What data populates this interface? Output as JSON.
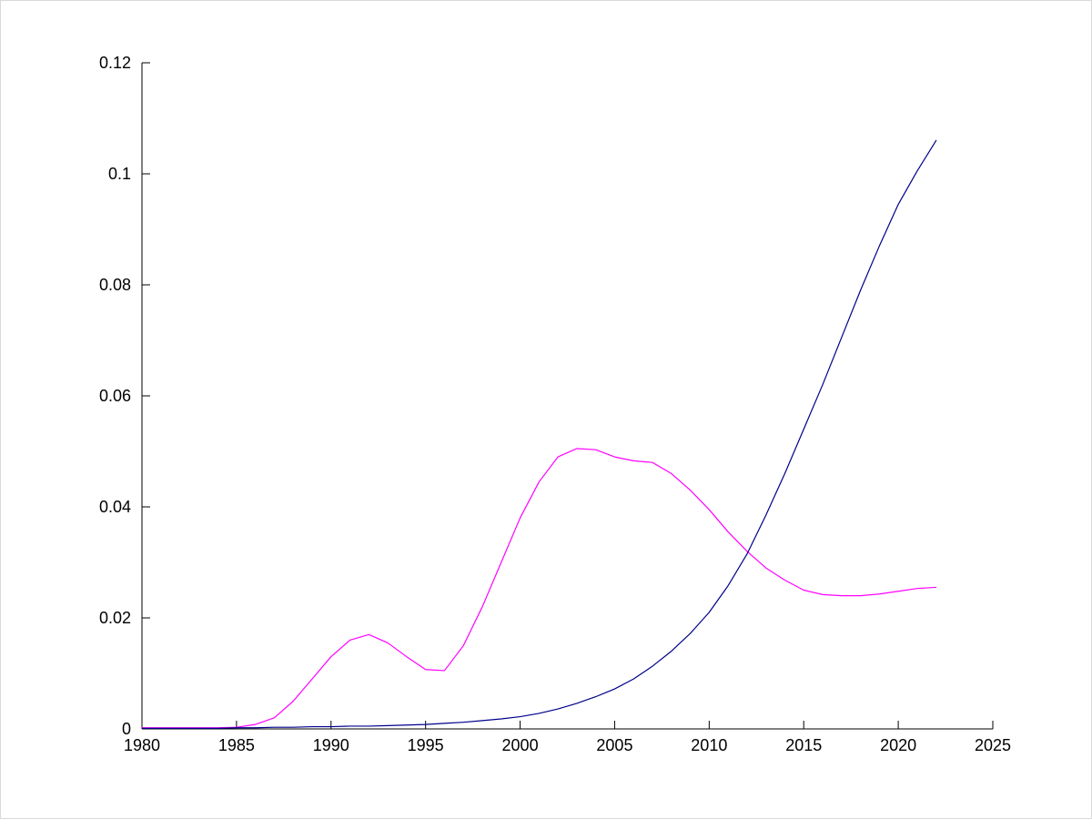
{
  "figure": {
    "background": "#ffffff",
    "axis_color": "#000000"
  },
  "chart_data": {
    "type": "line",
    "title": "",
    "xlabel": "",
    "ylabel": "",
    "xlim": [
      1980,
      2025
    ],
    "ylim": [
      0,
      0.12
    ],
    "xticks": [
      1980,
      1985,
      1990,
      1995,
      2000,
      2005,
      2010,
      2015,
      2020,
      2025
    ],
    "xtick_labels": [
      "1980",
      "1985",
      "1990",
      "1995",
      "2000",
      "2005",
      "2010",
      "2015",
      "2020",
      "2025"
    ],
    "yticks": [
      0,
      0.02,
      0.04,
      0.06,
      0.08,
      0.1,
      0.12
    ],
    "ytick_labels": [
      "0",
      "0.02",
      "0.04",
      "0.06",
      "0.08",
      "0.1",
      "0.12"
    ],
    "grid": false,
    "legend": null,
    "x": [
      1980,
      1981,
      1982,
      1983,
      1984,
      1985,
      1986,
      1987,
      1988,
      1989,
      1990,
      1991,
      1992,
      1993,
      1994,
      1995,
      1996,
      1997,
      1998,
      1999,
      2000,
      2001,
      2002,
      2003,
      2004,
      2005,
      2006,
      2007,
      2008,
      2009,
      2010,
      2011,
      2012,
      2013,
      2014,
      2015,
      2016,
      2017,
      2018,
      2019,
      2020,
      2021,
      2022
    ],
    "series": [
      {
        "name": "magenta-series",
        "color": "#FF00FF",
        "values": [
          0.0002,
          0.0002,
          0.0002,
          0.0002,
          0.0002,
          0.0003,
          0.0008,
          0.002,
          0.005,
          0.009,
          0.013,
          0.016,
          0.017,
          0.0155,
          0.013,
          0.0107,
          0.0105,
          0.015,
          0.022,
          0.03,
          0.038,
          0.0445,
          0.049,
          0.0505,
          0.0503,
          0.049,
          0.0483,
          0.048,
          0.046,
          0.043,
          0.0395,
          0.0355,
          0.032,
          0.029,
          0.0268,
          0.025,
          0.0242,
          0.024,
          0.024,
          0.0243,
          0.0248,
          0.0253,
          0.0255
        ]
      },
      {
        "name": "blue-series",
        "color": "#00008B",
        "values": [
          0.0001,
          0.0001,
          0.0001,
          0.0001,
          0.0001,
          0.0002,
          0.0002,
          0.0003,
          0.0003,
          0.0004,
          0.0004,
          0.0005,
          0.0005,
          0.0006,
          0.0007,
          0.0008,
          0.001,
          0.0012,
          0.0015,
          0.0018,
          0.0022,
          0.0028,
          0.0036,
          0.0046,
          0.0058,
          0.0072,
          0.009,
          0.0113,
          0.014,
          0.0172,
          0.021,
          0.0258,
          0.0315,
          0.0385,
          0.046,
          0.054,
          0.062,
          0.0705,
          0.079,
          0.087,
          0.0945,
          0.1005,
          0.106
        ]
      }
    ]
  }
}
